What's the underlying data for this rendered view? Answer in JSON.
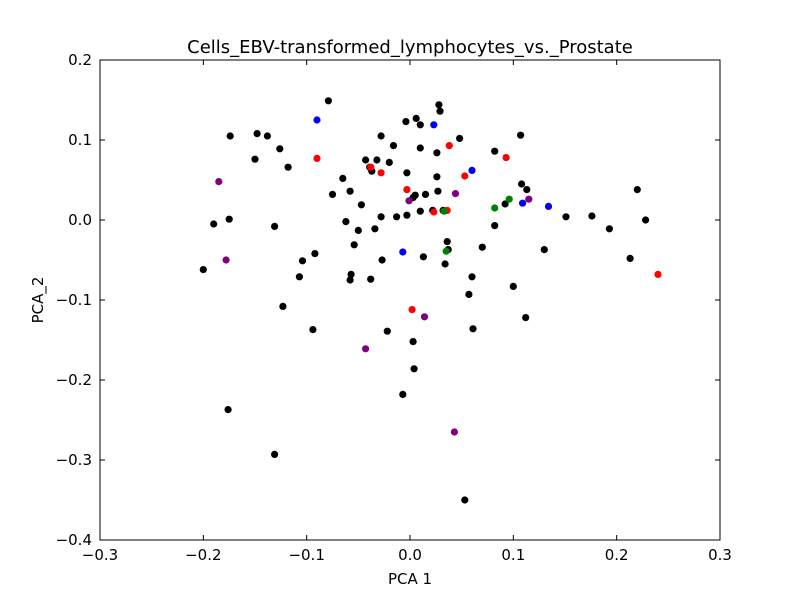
{
  "chart_data": {
    "type": "scatter",
    "title": "Cells_EBV-transformed_lymphocytes_vs._Prostate",
    "xlabel": "PCA 1",
    "ylabel": "PCA_2",
    "xlim": [
      -0.3,
      0.3
    ],
    "ylim": [
      -0.4,
      0.2
    ],
    "xticks": [
      -0.3,
      -0.2,
      -0.1,
      0.0,
      0.1,
      0.2,
      0.3
    ],
    "yticks": [
      -0.4,
      -0.3,
      -0.2,
      -0.1,
      0.0,
      0.1,
      0.2
    ],
    "xtick_labels": [
      "−0.3",
      "−0.2",
      "−0.1",
      "0.0",
      "0.1",
      "0.2",
      "0.3"
    ],
    "ytick_labels": [
      "−0.4",
      "−0.3",
      "−0.2",
      "−0.1",
      "0.0",
      "0.1",
      "0.2"
    ],
    "grid": false,
    "series": [
      {
        "color": "#000000",
        "points": [
          [
            -0.079,
            0.149
          ],
          [
            -0.174,
            0.105
          ],
          [
            -0.148,
            0.108
          ],
          [
            -0.138,
            0.105
          ],
          [
            -0.126,
            0.089
          ],
          [
            -0.15,
            0.076
          ],
          [
            -0.118,
            0.066
          ],
          [
            -0.075,
            0.032
          ],
          [
            -0.065,
            0.052
          ],
          [
            -0.058,
            0.036
          ],
          [
            -0.043,
            0.075
          ],
          [
            -0.037,
            0.061
          ],
          [
            -0.032,
            0.075
          ],
          [
            -0.028,
            0.105
          ],
          [
            -0.02,
            0.072
          ],
          [
            -0.016,
            0.093
          ],
          [
            -0.004,
            0.123
          ],
          [
            0.006,
            0.127
          ],
          [
            0.01,
            0.119
          ],
          [
            0.028,
            0.144
          ],
          [
            0.029,
            0.136
          ],
          [
            0.048,
            0.102
          ],
          [
            0.026,
            0.084
          ],
          [
            0.026,
            0.054
          ],
          [
            0.01,
            0.09
          ],
          [
            -0.003,
            0.059
          ],
          [
            0.003,
            0.028
          ],
          [
            0.005,
            0.031
          ],
          [
            0.015,
            0.032
          ],
          [
            0.027,
            0.036
          ],
          [
            0.022,
            0.012
          ],
          [
            0.01,
            0.011
          ],
          [
            0.032,
            0.012
          ],
          [
            -0.003,
            0.006
          ],
          [
            -0.013,
            0.004
          ],
          [
            -0.028,
            0.004
          ],
          [
            -0.039,
            0.066
          ],
          [
            -0.047,
            0.019
          ],
          [
            -0.062,
            -0.002
          ],
          [
            -0.05,
            -0.013
          ],
          [
            -0.034,
            -0.011
          ],
          [
            -0.054,
            -0.031
          ],
          [
            -0.057,
            -0.068
          ],
          [
            -0.058,
            -0.075
          ],
          [
            -0.038,
            -0.074
          ],
          [
            -0.027,
            -0.05
          ],
          [
            -0.092,
            -0.042
          ],
          [
            -0.104,
            -0.051
          ],
          [
            -0.107,
            -0.071
          ],
          [
            -0.131,
            -0.008
          ],
          [
            -0.175,
            0.001
          ],
          [
            -0.19,
            -0.005
          ],
          [
            -0.2,
            -0.062
          ],
          [
            -0.123,
            -0.108
          ],
          [
            -0.094,
            -0.137
          ],
          [
            -0.022,
            -0.139
          ],
          [
            0.003,
            -0.152
          ],
          [
            0.004,
            -0.186
          ],
          [
            -0.007,
            -0.218
          ],
          [
            0.013,
            -0.046
          ],
          [
            0.034,
            -0.055
          ],
          [
            0.036,
            -0.027
          ],
          [
            0.037,
            -0.037
          ],
          [
            0.057,
            -0.093
          ],
          [
            0.06,
            -0.071
          ],
          [
            0.061,
            -0.136
          ],
          [
            0.07,
            -0.034
          ],
          [
            0.082,
            0.086
          ],
          [
            0.082,
            -0.007
          ],
          [
            0.092,
            0.02
          ],
          [
            0.1,
            -0.083
          ],
          [
            0.107,
            0.106
          ],
          [
            0.108,
            0.045
          ],
          [
            0.113,
            0.038
          ],
          [
            0.112,
            -0.122
          ],
          [
            0.13,
            -0.037
          ],
          [
            0.151,
            0.004
          ],
          [
            0.176,
            0.005
          ],
          [
            0.193,
            -0.011
          ],
          [
            0.213,
            -0.048
          ],
          [
            0.22,
            0.038
          ],
          [
            0.228,
            0.0
          ],
          [
            -0.176,
            -0.237
          ],
          [
            -0.131,
            -0.293
          ],
          [
            0.053,
            -0.35
          ]
        ]
      },
      {
        "color": "#0000ff",
        "points": [
          [
            -0.09,
            0.125
          ],
          [
            0.023,
            0.119
          ],
          [
            0.06,
            0.062
          ],
          [
            -0.007,
            -0.04
          ],
          [
            0.109,
            0.021
          ],
          [
            0.134,
            0.017
          ]
        ]
      },
      {
        "color": "#ff0000",
        "points": [
          [
            -0.09,
            0.077
          ],
          [
            -0.028,
            0.059
          ],
          [
            -0.038,
            0.066
          ],
          [
            0.038,
            0.093
          ],
          [
            -0.003,
            0.038
          ],
          [
            0.023,
            0.01
          ],
          [
            0.036,
            0.012
          ],
          [
            0.053,
            0.055
          ],
          [
            0.093,
            0.078
          ],
          [
            0.002,
            -0.112
          ],
          [
            0.24,
            -0.068
          ]
        ]
      },
      {
        "color": "#800080",
        "points": [
          [
            -0.185,
            0.048
          ],
          [
            -0.178,
            -0.05
          ],
          [
            -0.001,
            0.024
          ],
          [
            0.044,
            0.033
          ],
          [
            0.115,
            0.026
          ],
          [
            0.014,
            -0.121
          ],
          [
            -0.043,
            -0.161
          ],
          [
            0.043,
            -0.265
          ]
        ]
      },
      {
        "color": "#008000",
        "points": [
          [
            0.033,
            0.011
          ],
          [
            0.035,
            -0.039
          ],
          [
            0.082,
            0.015
          ],
          [
            0.096,
            0.026
          ]
        ]
      }
    ]
  }
}
